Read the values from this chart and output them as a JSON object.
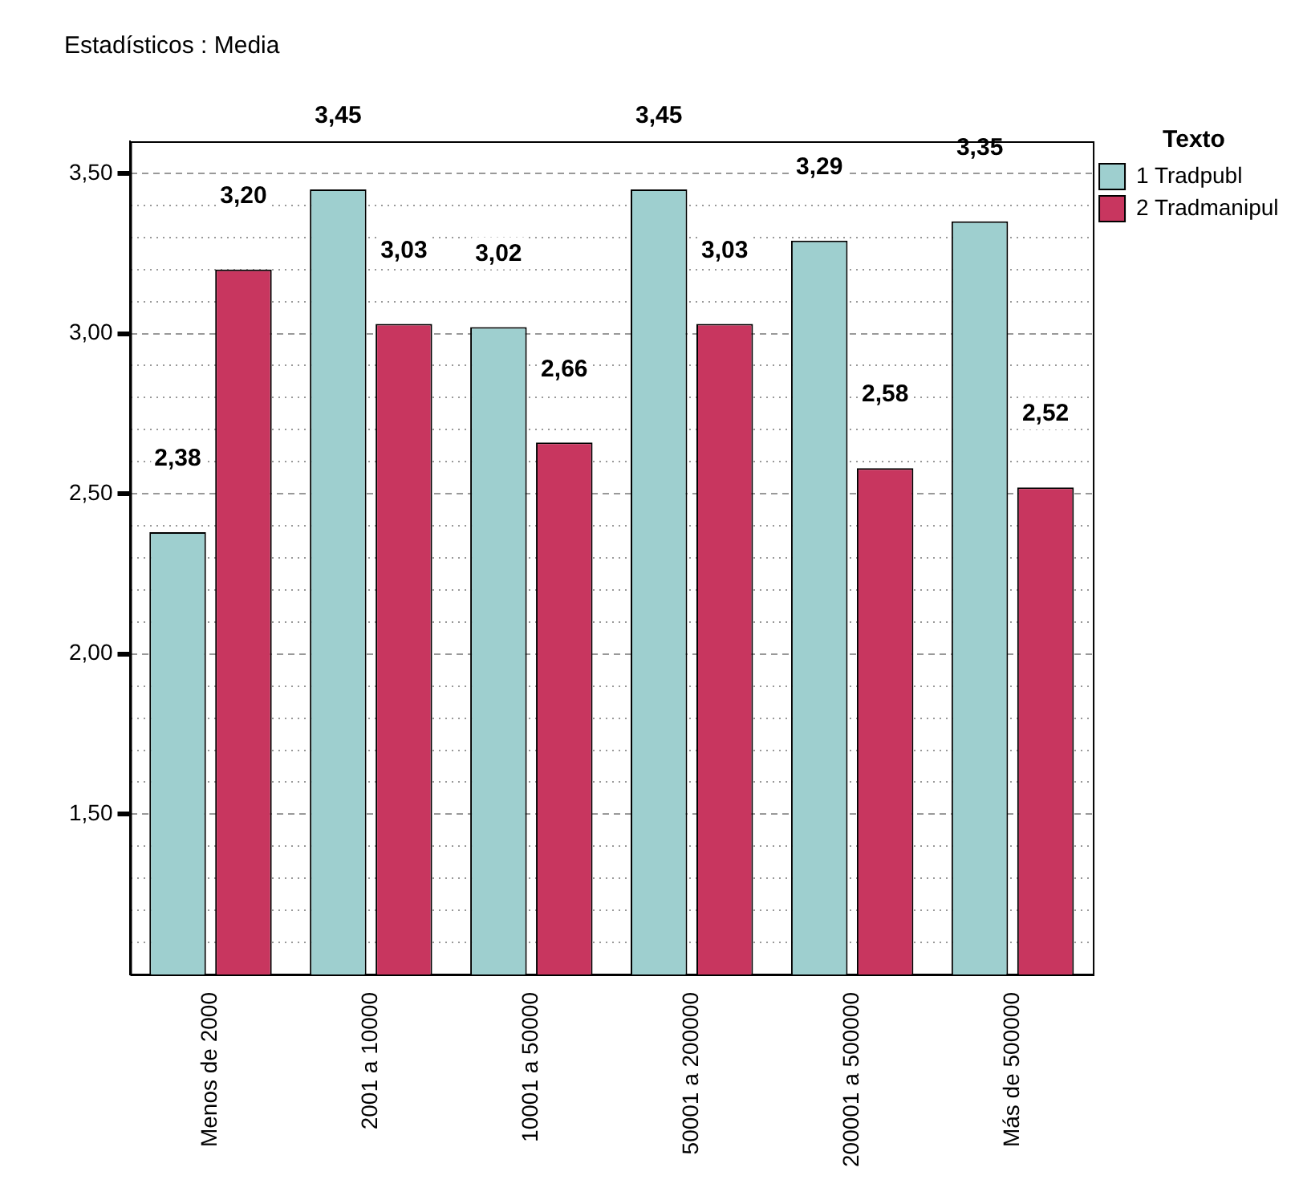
{
  "chart_data": {
    "type": "bar",
    "title": "Estadísticos : Media",
    "categories": [
      "Menos de 2000",
      "2001 a 10000",
      "10001 a 50000",
      "50001 a 200000",
      "200001 a 500000",
      "Más de 500000"
    ],
    "series": [
      {
        "name": "1 Tradpubl",
        "color": "#9ecfcf",
        "values": [
          2.38,
          3.45,
          3.02,
          3.45,
          3.29,
          3.35
        ],
        "value_labels": [
          "2,38",
          "3,45",
          "3,02",
          "3,45",
          "3,29",
          "3,35"
        ]
      },
      {
        "name": "2 Tradmanipul",
        "color": "#c8365f",
        "values": [
          3.2,
          3.03,
          2.66,
          3.03,
          2.58,
          2.52
        ],
        "value_labels": [
          "3,20",
          "3,03",
          "2,66",
          "3,03",
          "2,58",
          "2,52"
        ]
      }
    ],
    "legend_title": "Texto",
    "legend": "top right",
    "ylim": [
      1.0,
      3.6
    ],
    "yticks": [
      {
        "value": 1.1,
        "label": null
      },
      {
        "value": 1.2,
        "label": null
      },
      {
        "value": 1.3,
        "label": null
      },
      {
        "value": 1.4,
        "label": null
      },
      {
        "value": 1.5,
        "label": "1,50"
      },
      {
        "value": 1.6,
        "label": null
      },
      {
        "value": 1.7,
        "label": null
      },
      {
        "value": 1.8,
        "label": null
      },
      {
        "value": 1.9,
        "label": null
      },
      {
        "value": 2.0,
        "label": "2,00"
      },
      {
        "value": 2.1,
        "label": null
      },
      {
        "value": 2.2,
        "label": null
      },
      {
        "value": 2.3,
        "label": null
      },
      {
        "value": 2.4,
        "label": null
      },
      {
        "value": 2.5,
        "label": "2,50"
      },
      {
        "value": 2.6,
        "label": null
      },
      {
        "value": 2.7,
        "label": null
      },
      {
        "value": 2.8,
        "label": null
      },
      {
        "value": 2.9,
        "label": null
      },
      {
        "value": 3.0,
        "label": "3,00"
      },
      {
        "value": 3.1,
        "label": null
      },
      {
        "value": 3.2,
        "label": null
      },
      {
        "value": 3.3,
        "label": null
      },
      {
        "value": 3.4,
        "label": null
      },
      {
        "value": 3.5,
        "label": "3,50"
      }
    ],
    "grid": "y"
  }
}
